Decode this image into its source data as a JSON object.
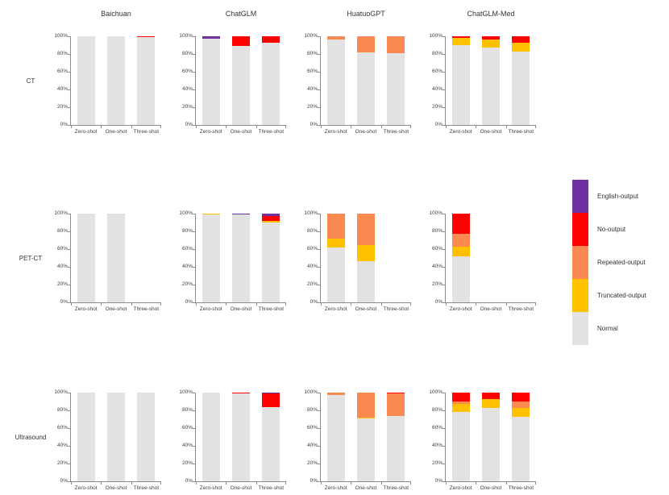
{
  "figure": {
    "background": "#FFFFFF"
  },
  "chart_data": {
    "type": "bar",
    "stacked": true,
    "unit": "percent",
    "columns": [
      "Baichuan",
      "ChatGLM",
      "HuatuoGPT",
      "ChatGLM-Med"
    ],
    "categories": [
      "Zero-shot",
      "One-shot",
      "Three-shot"
    ],
    "yticks": [
      "0%",
      "20%",
      "40%",
      "60%",
      "80%",
      "100%"
    ],
    "ylim": [
      0,
      100
    ],
    "grid": false,
    "legend_position": "right",
    "segments_bottom_to_top": [
      "Normal",
      "Truncated-output",
      "Repeated-output",
      "No-output",
      "English-output"
    ],
    "segment_colors": {
      "Normal": "#E2E2E2",
      "Truncated-output": "#FFC000",
      "Repeated-output": "#FA8A50",
      "No-output": "#FF0000",
      "English-output": "#7030A0"
    },
    "rows": [
      {
        "label": "CT",
        "charts": [
          {
            "model": "Baichuan",
            "values": {
              "Normal": [
                100,
                100,
                99
              ],
              "No-output": [
                0,
                0,
                1
              ]
            }
          },
          {
            "model": "ChatGLM",
            "values": {
              "Normal": [
                97,
                89,
                93
              ],
              "No-output": [
                0,
                11,
                7
              ],
              "English-output": [
                3,
                0,
                0
              ]
            }
          },
          {
            "model": "HuatuoGPT",
            "values": {
              "Normal": [
                96,
                82,
                81
              ],
              "Repeated-output": [
                4,
                18,
                19
              ]
            }
          },
          {
            "model": "ChatGLM-Med",
            "values": {
              "Normal": [
                90,
                87,
                83
              ],
              "Truncated-output": [
                8,
                9,
                10
              ],
              "No-output": [
                2,
                4,
                7
              ]
            }
          }
        ]
      },
      {
        "label": "PET-CT",
        "charts": [
          {
            "model": "Baichuan",
            "values": {
              "Normal": [
                100,
                100,
                0
              ]
            }
          },
          {
            "model": "ChatGLM",
            "values": {
              "Normal": [
                99,
                99,
                90
              ],
              "Truncated-output": [
                1,
                0,
                2
              ],
              "No-output": [
                0,
                0,
                5
              ],
              "English-output": [
                0,
                1,
                3
              ]
            }
          },
          {
            "model": "HuatuoGPT",
            "values": {
              "Normal": [
                62,
                46,
                0
              ],
              "Truncated-output": [
                10,
                19,
                0
              ],
              "Repeated-output": [
                28,
                35,
                0
              ]
            }
          },
          {
            "model": "ChatGLM-Med",
            "values": {
              "Normal": [
                52,
                0,
                0
              ],
              "Truncated-output": [
                11,
                0,
                0
              ],
              "Repeated-output": [
                14,
                0,
                0
              ],
              "No-output": [
                23,
                0,
                0
              ]
            }
          }
        ]
      },
      {
        "label": "Ultrasound",
        "charts": [
          {
            "model": "Baichuan",
            "values": {
              "Normal": [
                100,
                100,
                100
              ]
            }
          },
          {
            "model": "ChatGLM",
            "values": {
              "Normal": [
                100,
                99,
                84
              ],
              "No-output": [
                0,
                1,
                15
              ],
              "English-output": [
                0,
                0,
                1
              ]
            }
          },
          {
            "model": "HuatuoGPT",
            "values": {
              "Normal": [
                97,
                71,
                74
              ],
              "Truncated-output": [
                0,
                1,
                0
              ],
              "Repeated-output": [
                3,
                28,
                25
              ],
              "No-output": [
                0,
                0,
                1
              ]
            }
          },
          {
            "model": "ChatGLM-Med",
            "values": {
              "Normal": [
                78,
                83,
                73
              ],
              "Truncated-output": [
                9,
                10,
                10
              ],
              "Repeated-output": [
                3,
                0,
                7
              ],
              "No-output": [
                10,
                7,
                10
              ]
            }
          }
        ]
      }
    ]
  },
  "legend": {
    "items": [
      {
        "label": "English-output",
        "color": "#7030A0"
      },
      {
        "label": "No-output",
        "color": "#FF0000"
      },
      {
        "label": "Repeated-output",
        "color": "#FA8A50"
      },
      {
        "label": "Truncated-output",
        "color": "#FFC000"
      },
      {
        "label": "Normal",
        "color": "#E2E2E2"
      }
    ]
  }
}
